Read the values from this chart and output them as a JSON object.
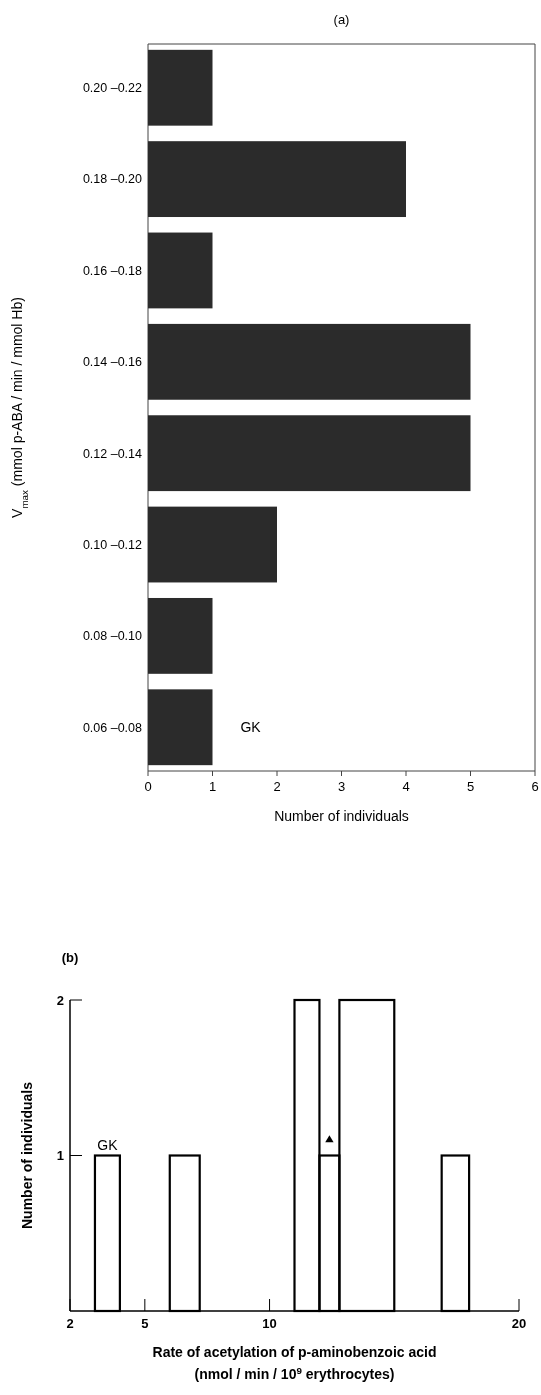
{
  "chart_data": [
    {
      "type": "bar",
      "orientation": "horizontal",
      "title": "(a)",
      "xlabel": "Number of individuals",
      "ylabel": "V$_{max}$ (mmol p-ABA / min / mmol Hb)",
      "categories": [
        "0.20 –0.22",
        "0.18 –0.20",
        "0.16 –0.18",
        "0.14 –0.16",
        "0.12 –0.14",
        "0.10 –0.12",
        "0.08 –0.10",
        "0.06 –0.08"
      ],
      "values": [
        1,
        4,
        1,
        5,
        5,
        2,
        1,
        1
      ],
      "color": "#2b2b2b",
      "xlim": [
        0,
        6
      ],
      "xticks": [
        0,
        1,
        2,
        3,
        4,
        5,
        6
      ],
      "annotations": [
        "GK"
      ]
    },
    {
      "type": "histogram",
      "title": "(b)",
      "xlabel": "Rate of acetylation of p-aminobenzoic acid\n(nmol / min / 10$^{9}$ erythrocytes)",
      "ylabel": "Number of individuals",
      "bins": [
        3,
        4,
        6,
        7.2,
        11,
        12,
        12.8,
        15,
        16.9,
        18
      ],
      "values": [
        1,
        0,
        1,
        0,
        2,
        1,
        2,
        0,
        1
      ],
      "color": "#000000",
      "series": [
        {
          "type": "scatter",
          "x": [
            12.4
          ],
          "values": [
            1.1
          ],
          "color": "#000000",
          "marker": "triangle"
        }
      ],
      "xlim": [
        2,
        20
      ],
      "xticks": [
        2,
        5,
        10,
        20
      ],
      "ylim": [
        0,
        2
      ],
      "yticks": [
        1,
        2
      ],
      "annotations": [
        "GK"
      ]
    }
  ]
}
